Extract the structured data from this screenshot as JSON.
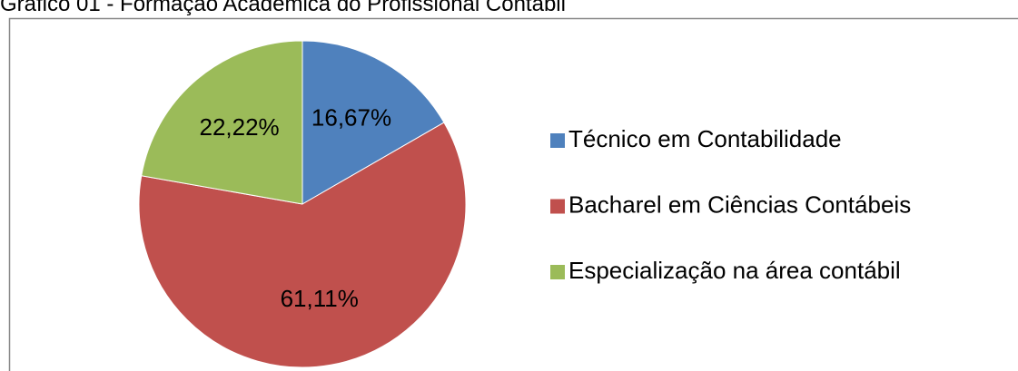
{
  "chart_data": {
    "type": "pie",
    "title": "Gráfico 01 - Formação Acadêmica do Profissional Contábil",
    "categories": [
      "Técnico em Contabilidade",
      "Bacharel em Ciências Contábeis",
      "Especialização na área contábil"
    ],
    "values": [
      16.67,
      61.11,
      22.22
    ],
    "value_labels": [
      "16,67%",
      "61,11%",
      "22,22%"
    ],
    "colors": [
      "#4f81bd",
      "#c0504d",
      "#9bbb59"
    ],
    "legend": "right"
  }
}
